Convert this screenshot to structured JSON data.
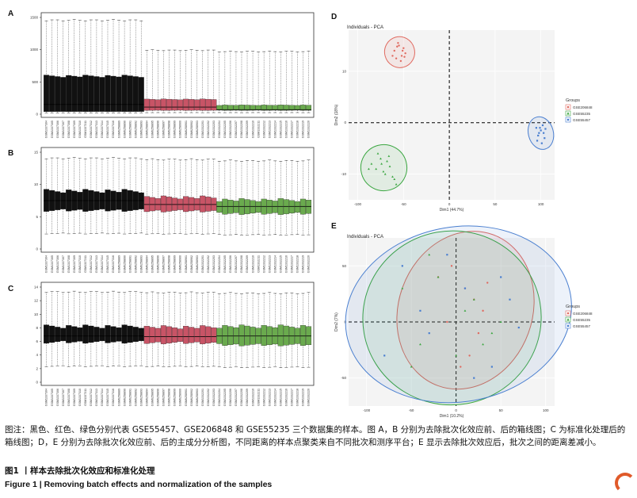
{
  "panels": {
    "A": {
      "letter": "A",
      "y_ticks": [
        "0",
        "500",
        "1000",
        "1500"
      ]
    },
    "B": {
      "letter": "B",
      "y_ticks": [
        "0",
        "5",
        "10",
        "15"
      ]
    },
    "C": {
      "letter": "C",
      "y_ticks": [
        "0",
        "2",
        "4",
        "6",
        "8",
        "10",
        "12",
        "14"
      ]
    },
    "D": {
      "letter": "D",
      "title": "Individuals - PCA",
      "xlabel": "Dim1 (44.7%)",
      "ylabel": "Dim2 (18%)",
      "x_ticks": [
        "-100",
        "-50",
        "0",
        "50",
        "100"
      ],
      "y_ticks": [
        "10",
        "0",
        "-10"
      ],
      "legend_title": "Groups",
      "legend": [
        "GSE206848",
        "GSE55235",
        "GSE55457"
      ]
    },
    "E": {
      "letter": "E",
      "title": "Individuals - PCA",
      "xlabel": "Dim1 (10.2%)",
      "ylabel": "Dim2 (7%)",
      "x_ticks": [
        "-100",
        "-50",
        "0",
        "50",
        "100"
      ],
      "y_ticks": [
        "50",
        "0",
        "-50"
      ],
      "legend_title": "Groups",
      "legend": [
        "GSE206848",
        "GSE55235",
        "GSE55457"
      ]
    }
  },
  "colors": {
    "GSE55457": "#111111",
    "GSE206848": "#c85466",
    "GSE55235": "#6aaa4e",
    "blue": "#4a7fd0",
    "red": "#e06a60",
    "green": "#3aa640"
  },
  "sample_labels": [
    "GSM1337304",
    "GSM1337305",
    "GSM1337306",
    "GSM1337307",
    "GSM1337308",
    "GSM1337309",
    "GSM1337310",
    "GSM1337311",
    "GSM1337312",
    "GSM1337313",
    "GSM1337314",
    "GSM1337315",
    "GSM1337316",
    "GSM6258889",
    "GSM6258890",
    "GSM6258891",
    "GSM6258892",
    "GSM6258893",
    "GSM6258894",
    "GSM6258895",
    "GSM6258896",
    "GSM6258897",
    "GSM6258898",
    "GSM6258899",
    "GSM6258900",
    "GSM6258901",
    "GSM6258902",
    "GSM6258903",
    "GSM1332201",
    "GSM1332202",
    "GSM1332203",
    "GSM1332204",
    "GSM1332205",
    "GSM1332206",
    "GSM1332207",
    "GSM1332208",
    "GSM1332209",
    "GSM1332210",
    "GSM1332211",
    "GSM1332212",
    "GSM1332213",
    "GSM1332214",
    "GSM1332215",
    "GSM1332216",
    "GSM1332217",
    "GSM1332218",
    "GSM1332219",
    "GSM1332220"
  ],
  "chart_data": [
    {
      "type": "box",
      "panel": "A",
      "groups": [
        "GSE55457",
        "GSE206848",
        "GSE55235"
      ],
      "group_sizes": [
        18,
        13,
        17
      ],
      "ylim": [
        0,
        1500
      ],
      "box_low": [
        40,
        60,
        60
      ],
      "box_high": [
        590,
        230,
        140
      ],
      "whisker_high": [
        1470,
        1000,
        980
      ],
      "median": [
        150,
        110,
        70
      ]
    },
    {
      "type": "box",
      "panel": "B",
      "groups": [
        "GSE55457",
        "GSE206848",
        "GSE55235"
      ],
      "group_sizes": [
        18,
        13,
        17
      ],
      "ylim": [
        0,
        15
      ],
      "box_low": [
        6,
        5.9,
        5.5
      ],
      "box_high": [
        9,
        8,
        7.6
      ],
      "whisker_high": [
        14.2,
        14,
        13.8
      ],
      "median": [
        7.5,
        6.9,
        6.6
      ]
    },
    {
      "type": "box",
      "panel": "C",
      "groups": [
        "GSE55457",
        "GSE206848",
        "GSE55235"
      ],
      "group_sizes": [
        18,
        13,
        17
      ],
      "ylim": [
        0,
        14
      ],
      "box_low": [
        5.9,
        5.8,
        5.5
      ],
      "box_high": [
        8.2,
        8.1,
        8.2
      ],
      "whisker_high": [
        13.4,
        13.3,
        13.2
      ],
      "median": [
        6.8,
        6.7,
        6.8
      ]
    },
    {
      "type": "scatter",
      "panel": "D",
      "xlim": [
        -110,
        115
      ],
      "ylim": [
        -15,
        18
      ],
      "series": [
        {
          "name": "GSE206848",
          "x": [
            -60,
            -55,
            -52,
            -50,
            -58,
            -48,
            -62,
            -56,
            -53,
            -51,
            -57,
            -49
          ],
          "y": [
            14,
            15,
            13,
            14.5,
            12.5,
            13.5,
            13,
            15.5,
            12,
            14,
            14.8,
            12.8
          ]
        },
        {
          "name": "GSE55235",
          "x": [
            -85,
            -80,
            -75,
            -70,
            -65,
            -60,
            -78,
            -72,
            -68,
            -62,
            -88,
            -74,
            -66,
            -58
          ],
          "y": [
            -8,
            -9,
            -7,
            -10,
            -8.5,
            -11,
            -6,
            -9.5,
            -7.5,
            -10.5,
            -9,
            -8,
            -6.5,
            -12
          ]
        },
        {
          "name": "GSE55457",
          "x": [
            95,
            98,
            100,
            102,
            104,
            97,
            101,
            99,
            103,
            96,
            105
          ],
          "y": [
            -1,
            -2,
            -1.5,
            -0.5,
            -3,
            -2.5,
            -4,
            -1,
            -2,
            -3.5,
            -1.2
          ]
        }
      ]
    },
    {
      "type": "scatter",
      "panel": "E",
      "xlim": [
        -120,
        110
      ],
      "ylim": [
        -75,
        75
      ],
      "series": [
        {
          "name": "GSE206848",
          "x": [
            -20,
            -5,
            10,
            20,
            30,
            25,
            15,
            5,
            -10,
            35
          ],
          "y": [
            40,
            50,
            30,
            20,
            10,
            -10,
            -30,
            -40,
            0,
            35
          ]
        },
        {
          "name": "GSE55235",
          "x": [
            -60,
            -40,
            -20,
            0,
            20,
            40,
            -50,
            10,
            30,
            -30,
            50
          ],
          "y": [
            30,
            -20,
            40,
            -30,
            20,
            -10,
            -40,
            10,
            -20,
            60,
            0
          ]
        },
        {
          "name": "GSE55457",
          "x": [
            -80,
            -60,
            -30,
            10,
            40,
            60,
            -40,
            20,
            50,
            -10,
            70
          ],
          "y": [
            -30,
            50,
            -10,
            30,
            -40,
            20,
            10,
            -50,
            40,
            60,
            -5
          ]
        }
      ]
    }
  ],
  "caption": {
    "note": "图注：黑色、红色、绿色分别代表 GSE55457、GSE206848 和 GSE55235 三个数据集的样本。图 A，B 分别为去除批次化效应前、后的箱线图；C 为标准化处理后的箱线图；D，E 分别为去除批次化效应前、后的主成分分析图，不同距离的样本点聚类来自不同批次和测序平台；E 显示去除批次效应后，批次之间的距离差减小。",
    "title_cn": "图1 丨样本去除批次化效应和标准化处理",
    "title_en": "Figure 1 | Removing batch effects and normalization of the samples"
  }
}
